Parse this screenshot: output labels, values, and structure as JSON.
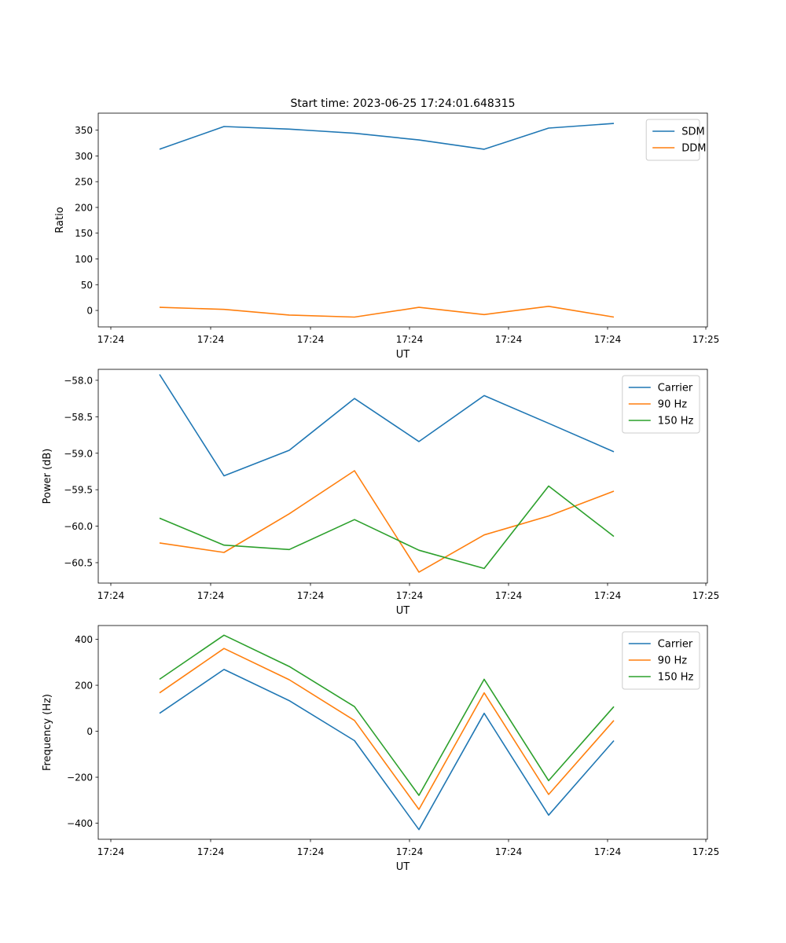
{
  "chart_data": [
    {
      "type": "line",
      "title": "Start time: 2023-06-25 17:24:01.648315",
      "xlabel": "UT",
      "ylabel": "Ratio",
      "x_tick_labels": [
        "17:24",
        "17:24",
        "17:24",
        "17:24",
        "17:24",
        "17:24",
        "17:24"
      ],
      "x_tick_last_label": "17:25",
      "y_ticks": [
        0,
        50,
        100,
        150,
        200,
        250,
        300,
        350
      ],
      "ylim": [
        -32,
        383
      ],
      "legend_position": "top-right",
      "series": [
        {
          "name": "SDM",
          "color": "#1f77b4",
          "values": [
            313,
            357,
            352,
            344,
            331,
            313,
            354,
            363
          ]
        },
        {
          "name": "DDM",
          "color": "#ff7f0e",
          "values": [
            6,
            2,
            -9,
            -13,
            6,
            -8,
            8,
            -13
          ]
        }
      ]
    },
    {
      "type": "line",
      "title": "",
      "xlabel": "UT",
      "ylabel": "Power (dB)",
      "x_tick_labels": [
        "17:24",
        "17:24",
        "17:24",
        "17:24",
        "17:24",
        "17:24",
        "17:24"
      ],
      "x_tick_last_label": "17:25",
      "y_ticks": [
        -58.0,
        -58.5,
        -59.0,
        -59.5,
        -60.0,
        -60.5
      ],
      "ylim": [
        -60.78,
        -57.85
      ],
      "legend_position": "top-right",
      "series": [
        {
          "name": "Carrier",
          "color": "#1f77b4",
          "values": [
            -57.92,
            -59.31,
            -58.96,
            -58.25,
            -58.84,
            -58.21,
            -58.59,
            -58.98
          ]
        },
        {
          "name": "90 Hz",
          "color": "#ff7f0e",
          "values": [
            -60.23,
            -60.36,
            -59.83,
            -59.24,
            -60.63,
            -60.12,
            -59.86,
            -59.52
          ]
        },
        {
          "name": "150 Hz",
          "color": "#2ca02c",
          "values": [
            -59.89,
            -60.26,
            -60.32,
            -59.91,
            -60.33,
            -60.58,
            -59.45,
            -60.14
          ]
        }
      ]
    },
    {
      "type": "line",
      "title": "",
      "xlabel": "UT",
      "ylabel": "Frequency (Hz)",
      "x_tick_labels": [
        "17:24",
        "17:24",
        "17:24",
        "17:24",
        "17:24",
        "17:24",
        "17:24"
      ],
      "x_tick_last_label": "17:25",
      "y_ticks": [
        400,
        200,
        0,
        -200,
        -400
      ],
      "ylim": [
        -470,
        460
      ],
      "legend_position": "top-right",
      "series": [
        {
          "name": "Carrier",
          "color": "#1f77b4",
          "values": [
            78,
            269,
            133,
            -41,
            -428,
            78,
            -365,
            -41
          ]
        },
        {
          "name": "90 Hz",
          "color": "#ff7f0e",
          "values": [
            167,
            360,
            224,
            47,
            -340,
            167,
            -275,
            47
          ]
        },
        {
          "name": "150 Hz",
          "color": "#2ca02c",
          "values": [
            226,
            418,
            282,
            107,
            -279,
            226,
            -215,
            107
          ]
        }
      ]
    }
  ]
}
